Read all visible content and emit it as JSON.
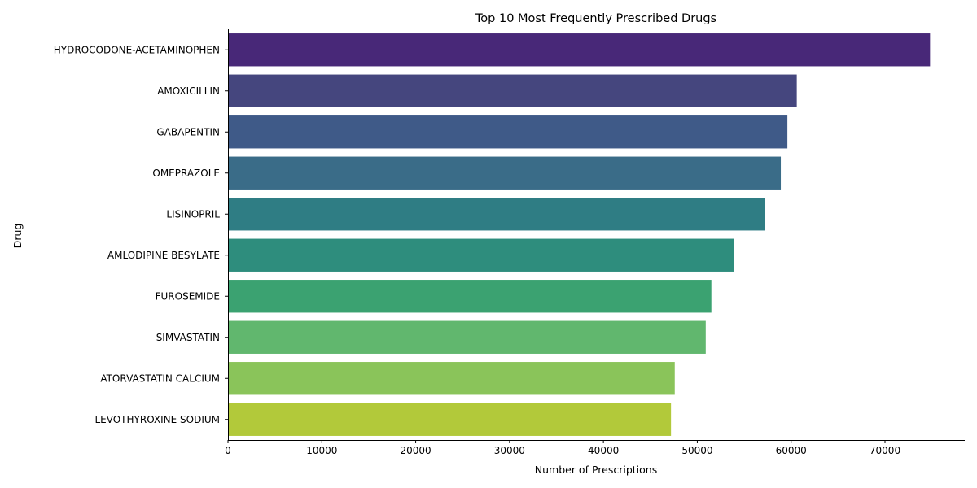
{
  "chart_data": {
    "type": "bar",
    "orientation": "horizontal",
    "title": "Top 10 Most Frequently Prescribed Drugs",
    "xlabel": "Number of Prescriptions",
    "ylabel": "Drug",
    "xlim": [
      0,
      78500
    ],
    "x_ticks": [
      0,
      10000,
      20000,
      30000,
      40000,
      50000,
      60000,
      70000
    ],
    "grid": false,
    "categories": [
      "HYDROCODONE-ACETAMINOPHEN",
      "AMOXICILLIN",
      "GABAPENTIN",
      "OMEPRAZOLE",
      "LISINOPRIL",
      "AMLODIPINE BESYLATE",
      "FUROSEMIDE",
      "SIMVASTATIN",
      "ATORVASTATIN CALCIUM",
      "LEVOTHYROXINE SODIUM"
    ],
    "values": [
      74800,
      60600,
      59600,
      58900,
      57200,
      53900,
      51500,
      50900,
      47600,
      47200
    ],
    "colors": [
      "#482878",
      "#45467e",
      "#3f5a88",
      "#3a6c88",
      "#2f7d84",
      "#2e8d7d",
      "#3ba271",
      "#61b76e",
      "#8ac45a",
      "#b2c93a"
    ]
  }
}
